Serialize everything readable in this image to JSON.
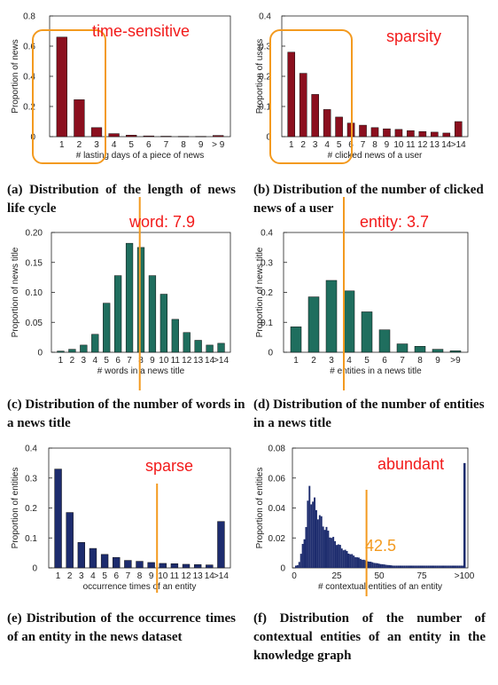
{
  "chart_data": [
    {
      "type": "bar",
      "id": "a",
      "xlabel": "# lasting days of a piece of news",
      "ylabel": "Proportion of news",
      "categories": [
        "1",
        "2",
        "3",
        "4",
        "5",
        "6",
        "7",
        "8",
        "9",
        "> 9"
      ],
      "values": [
        0.66,
        0.245,
        0.06,
        0.02,
        0.01,
        0.005,
        0.003,
        0.002,
        0.002,
        0.008
      ],
      "ylim": [
        0,
        0.8
      ],
      "yticks": [
        "0",
        "0.2",
        "0.4",
        "0.6",
        "0.8"
      ],
      "bar_color": "#8b0f1e",
      "annotation": "time-sensitive",
      "caption": "(a) Distribution of the length of news life cycle"
    },
    {
      "type": "bar",
      "id": "b",
      "xlabel": "# clicked news of a user",
      "ylabel": "Proportion of users",
      "categories": [
        "1",
        "2",
        "3",
        "4",
        "5",
        "6",
        "7",
        "8",
        "9",
        "10",
        "11",
        "12",
        "13",
        "14",
        ">14"
      ],
      "values": [
        0.28,
        0.21,
        0.14,
        0.09,
        0.065,
        0.045,
        0.038,
        0.03,
        0.026,
        0.024,
        0.02,
        0.017,
        0.015,
        0.012,
        0.05
      ],
      "ylim": [
        0,
        0.4
      ],
      "yticks": [
        "0",
        "0.1",
        "0.2",
        "0.3",
        "0.4"
      ],
      "bar_color": "#8b0f1e",
      "annotation": "sparsity",
      "caption": "(b) Distribution of the number of clicked news of a user"
    },
    {
      "type": "bar",
      "id": "c",
      "xlabel": "# words in a news title",
      "ylabel": "Proportion of news title",
      "categories": [
        "1",
        "2",
        "3",
        "4",
        "5",
        "6",
        "7",
        "8",
        "9",
        "10",
        "11",
        "12",
        "13",
        "14",
        ">14"
      ],
      "values": [
        0.002,
        0.005,
        0.012,
        0.03,
        0.082,
        0.128,
        0.182,
        0.175,
        0.128,
        0.097,
        0.055,
        0.033,
        0.02,
        0.012,
        0.015
      ],
      "ylim": [
        0,
        0.2
      ],
      "yticks": [
        "0",
        "0.05",
        "0.10",
        "0.15",
        "0.20"
      ],
      "bar_color": "#1f6e5e",
      "annotation": "word: 7.9",
      "mean": 7.9,
      "caption": "(c) Distribution of the number of words in a news title"
    },
    {
      "type": "bar",
      "id": "d",
      "xlabel": "# entities in a news title",
      "ylabel": "Proportion of news title",
      "categories": [
        "1",
        "2",
        "3",
        "4",
        "5",
        "6",
        "7",
        "8",
        "9",
        ">9"
      ],
      "values": [
        0.085,
        0.185,
        0.24,
        0.205,
        0.135,
        0.075,
        0.028,
        0.02,
        0.01,
        0.005
      ],
      "ylim": [
        0,
        0.4
      ],
      "yticks": [
        "0",
        "0.1",
        "0.2",
        "0.3",
        "0.4"
      ],
      "bar_color": "#1f6e5e",
      "annotation": "entity: 3.7",
      "mean": 3.7,
      "caption": "(d) Distribution of the number of entities in a news title"
    },
    {
      "type": "bar",
      "id": "e",
      "xlabel": "occurrence times of an entity",
      "ylabel": "Proportion of entities",
      "categories": [
        "1",
        "2",
        "3",
        "4",
        "5",
        "6",
        "7",
        "8",
        "9",
        "10",
        "11",
        "12",
        "13",
        "14",
        ">14"
      ],
      "values": [
        0.33,
        0.185,
        0.085,
        0.065,
        0.045,
        0.035,
        0.025,
        0.022,
        0.018,
        0.015,
        0.014,
        0.012,
        0.011,
        0.01,
        0.155
      ],
      "ylim": [
        0,
        0.4
      ],
      "yticks": [
        "0",
        "0.1",
        "0.2",
        "0.3",
        "0.4"
      ],
      "bar_color": "#1d2c6e",
      "annotation": "sparse",
      "marker_value": 10,
      "caption": "(e) Distribution of the occurrence times of an entity in the news dataset"
    },
    {
      "type": "bar",
      "id": "f",
      "xlabel": "# contextual entities of an entity",
      "ylabel": "Proportion of entities",
      "x_range": [
        0,
        100
      ],
      "xticks": [
        "0",
        "25",
        "50",
        "75",
        ">100"
      ],
      "ylim": [
        0,
        0.08
      ],
      "yticks": [
        "0",
        "0.02",
        "0.04",
        "0.06",
        "0.08"
      ],
      "bar_color": "#1d2c6e",
      "annotation": "abundant",
      "mean_label": "42.5",
      "mean": 42.5,
      "peak_value": 0.052,
      "peak_at": 9,
      "last_value": 0.07,
      "caption": "(f) Distribution of the number of contextual entities of an entity in the knowledge graph"
    }
  ],
  "colors": {
    "annotation_red": "#f21a1a",
    "highlight_orange": "#f39a1f"
  }
}
